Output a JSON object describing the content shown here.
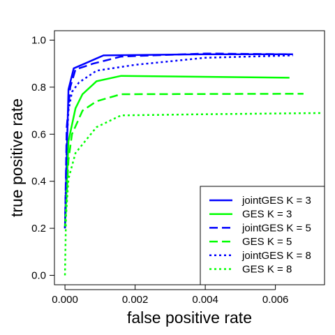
{
  "chart_data": {
    "type": "line",
    "title": "",
    "xlabel": "false positive rate",
    "ylabel": "true positive rate",
    "xlim": [
      -0.0003,
      0.0074
    ],
    "ylim": [
      -0.04,
      1.04
    ],
    "x_ticks": [
      0.0,
      0.002,
      0.004,
      0.006
    ],
    "x_tick_labels": [
      "0.000",
      "0.002",
      "0.004",
      "0.006"
    ],
    "y_ticks": [
      0.0,
      0.2,
      0.4,
      0.6,
      0.8,
      1.0
    ],
    "y_tick_labels": [
      "0.0",
      "0.2",
      "0.4",
      "0.6",
      "0.8",
      "1.0"
    ],
    "grid": false,
    "legend_position": "bottom-right",
    "series": [
      {
        "name": "jointGES K = 3",
        "color": "#0000ff",
        "dash": "solid",
        "points": [
          [
            0.0,
            0.2
          ],
          [
            0.0001,
            0.79
          ],
          [
            0.00025,
            0.88
          ],
          [
            0.0011,
            0.935
          ],
          [
            0.004,
            0.94
          ],
          [
            0.0065,
            0.94
          ]
        ]
      },
      {
        "name": "GES K = 3",
        "color": "#00ff00",
        "dash": "solid",
        "points": [
          [
            0.0,
            0.2
          ],
          [
            0.0001,
            0.57
          ],
          [
            0.0003,
            0.71
          ],
          [
            0.0005,
            0.77
          ],
          [
            0.0009,
            0.825
          ],
          [
            0.0016,
            0.848
          ],
          [
            0.0064,
            0.84
          ]
        ]
      },
      {
        "name": "jointGES K = 5",
        "color": "#0000ff",
        "dash": "dashed",
        "points": [
          [
            0.0,
            0.2
          ],
          [
            5e-05,
            0.63
          ],
          [
            0.00015,
            0.8
          ],
          [
            0.0003,
            0.875
          ],
          [
            0.0008,
            0.9
          ],
          [
            0.0016,
            0.93
          ],
          [
            0.0025,
            0.935
          ],
          [
            0.004,
            0.943
          ],
          [
            0.0064,
            0.94
          ]
        ]
      },
      {
        "name": "GES K = 5",
        "color": "#00ff00",
        "dash": "dashed",
        "points": [
          [
            0.0,
            0.2
          ],
          [
            0.0001,
            0.49
          ],
          [
            0.0002,
            0.6
          ],
          [
            0.0005,
            0.7
          ],
          [
            0.0009,
            0.74
          ],
          [
            0.0016,
            0.77
          ],
          [
            0.0068,
            0.772
          ]
        ]
      },
      {
        "name": "jointGES K = 8",
        "color": "#0000ff",
        "dash": "dotted",
        "points": [
          [
            0.0,
            0.2
          ],
          [
            5e-05,
            0.56
          ],
          [
            0.0001,
            0.7
          ],
          [
            0.0002,
            0.78
          ],
          [
            0.0004,
            0.82
          ],
          [
            0.0009,
            0.87
          ],
          [
            0.002,
            0.895
          ],
          [
            0.004,
            0.925
          ],
          [
            0.0065,
            0.935
          ]
        ]
      },
      {
        "name": "GES K = 8",
        "color": "#00ff00",
        "dash": "dotted",
        "points": [
          [
            0.0,
            0.0
          ],
          [
            3e-05,
            0.25
          ],
          [
            0.0001,
            0.41
          ],
          [
            0.0003,
            0.52
          ],
          [
            0.0009,
            0.63
          ],
          [
            0.0016,
            0.68
          ],
          [
            0.004,
            0.685
          ],
          [
            0.0073,
            0.69
          ]
        ]
      }
    ]
  }
}
